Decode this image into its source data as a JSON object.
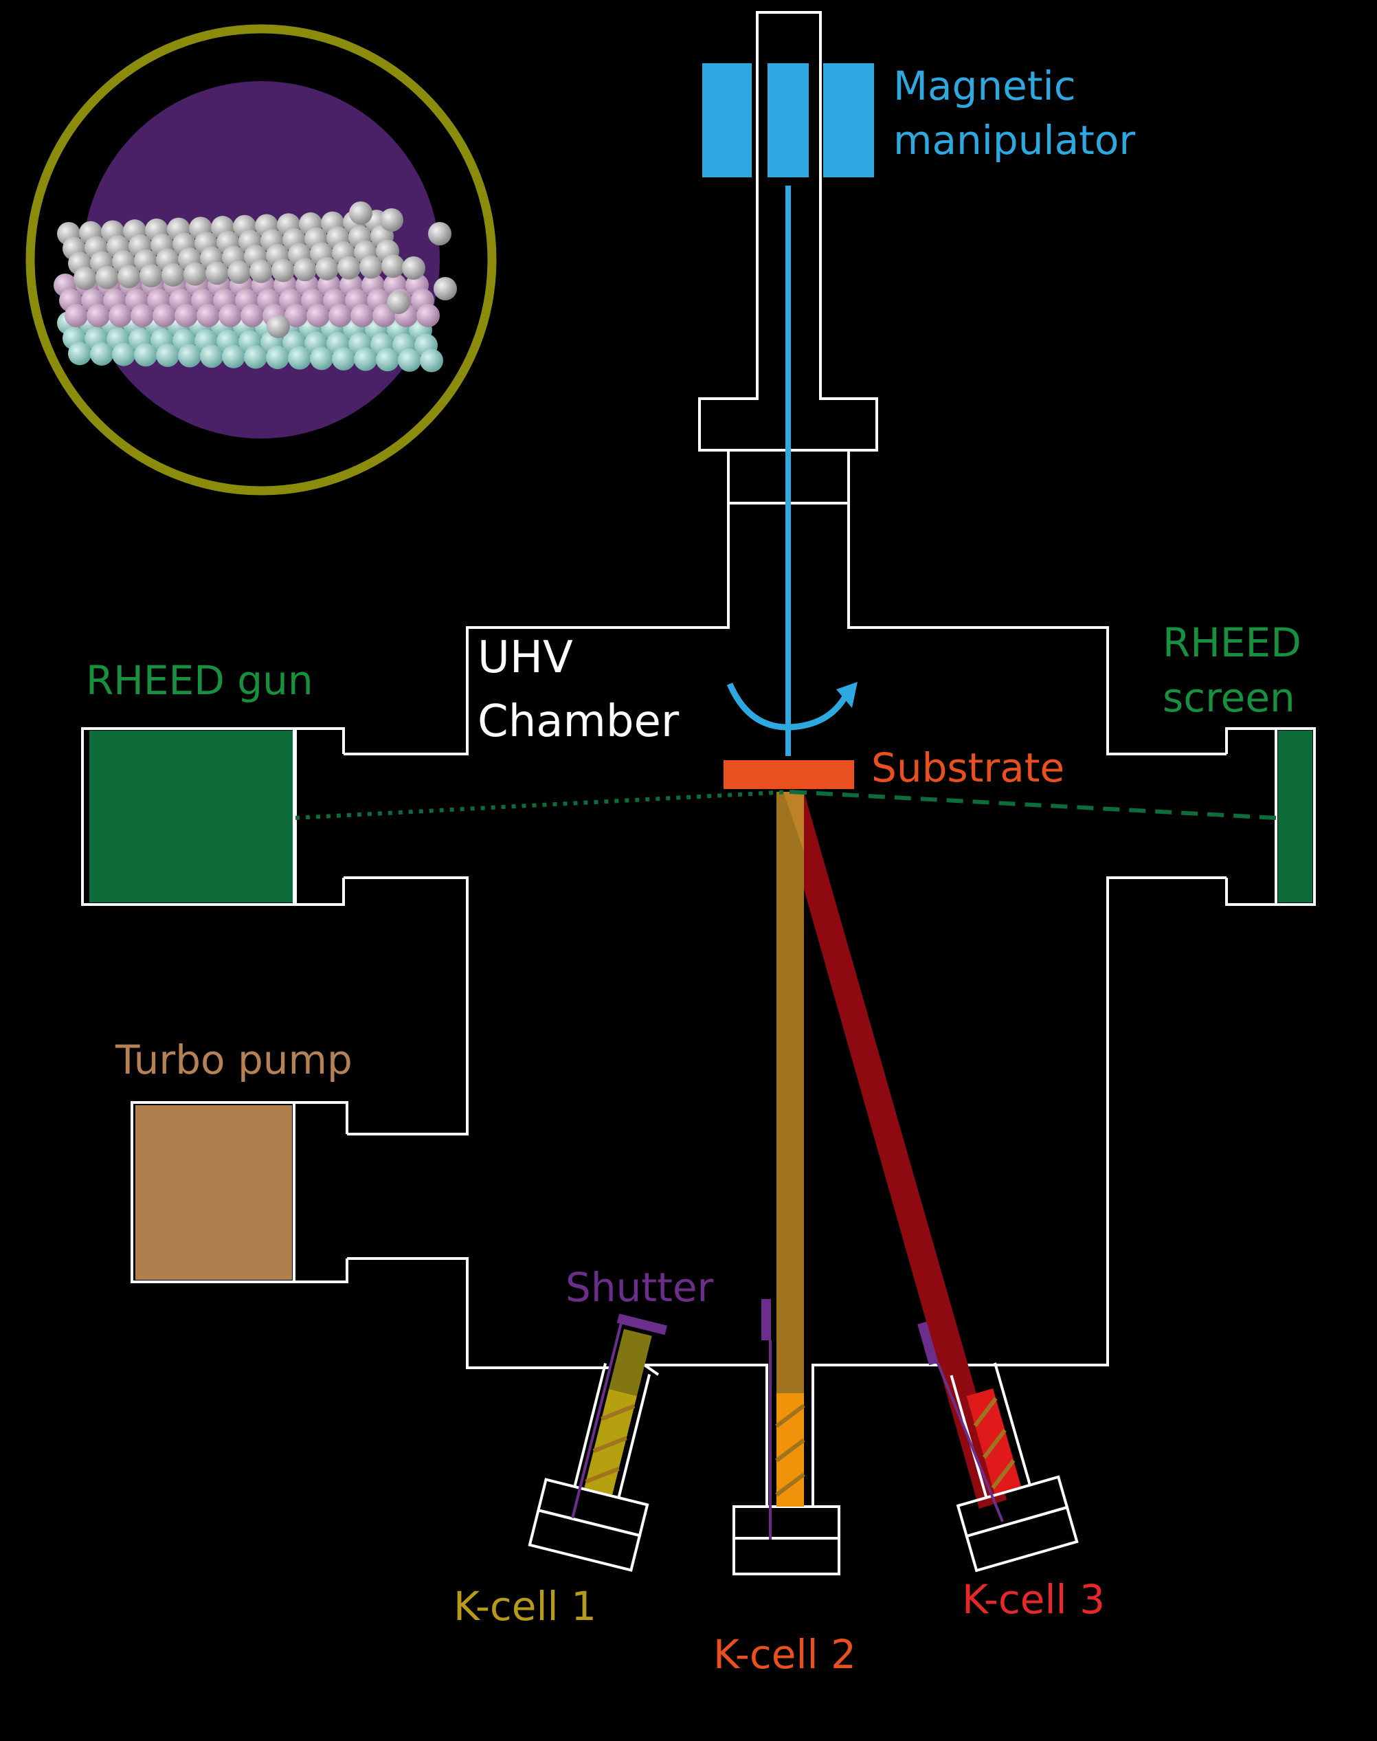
{
  "labels": {
    "magnetic_line1": "Magnetic",
    "magnetic_line2": "manipulator",
    "uhv_line1": "UHV",
    "uhv_line2": "Chamber",
    "rheed_gun": "RHEED gun",
    "rheed_screen_line1": "RHEED",
    "rheed_screen_line2": "screen",
    "substrate": "Substrate",
    "turbo_pump": "Turbo pump",
    "shutter": "Shutter",
    "kcell1": "K-cell 1",
    "kcell2": "K-cell 2",
    "kcell3": "K-cell 3"
  },
  "colors": {
    "background": "#000000",
    "chamber_outline": "#ffffff",
    "manipulator": "#2ea8e0",
    "rheed": "#0e6b3a",
    "rheed_label": "#17913f",
    "substrate": "#e9501e",
    "turbo": "#b07f4e",
    "turbo_label": "#b68155",
    "shutter": "#6b2e8a",
    "kcell1": "#b5a00f",
    "kcell1_label": "#b89a1a",
    "kcell2": "#f0920a",
    "kcell2_label": "#e9501e",
    "kcell3": "#e01a1a",
    "kcell3_label": "#e62828",
    "beam2": "#a0731e",
    "beam3": "#8f0a10",
    "inset_ring": "#8b8c0c",
    "inset_bg": "#4a2066"
  }
}
